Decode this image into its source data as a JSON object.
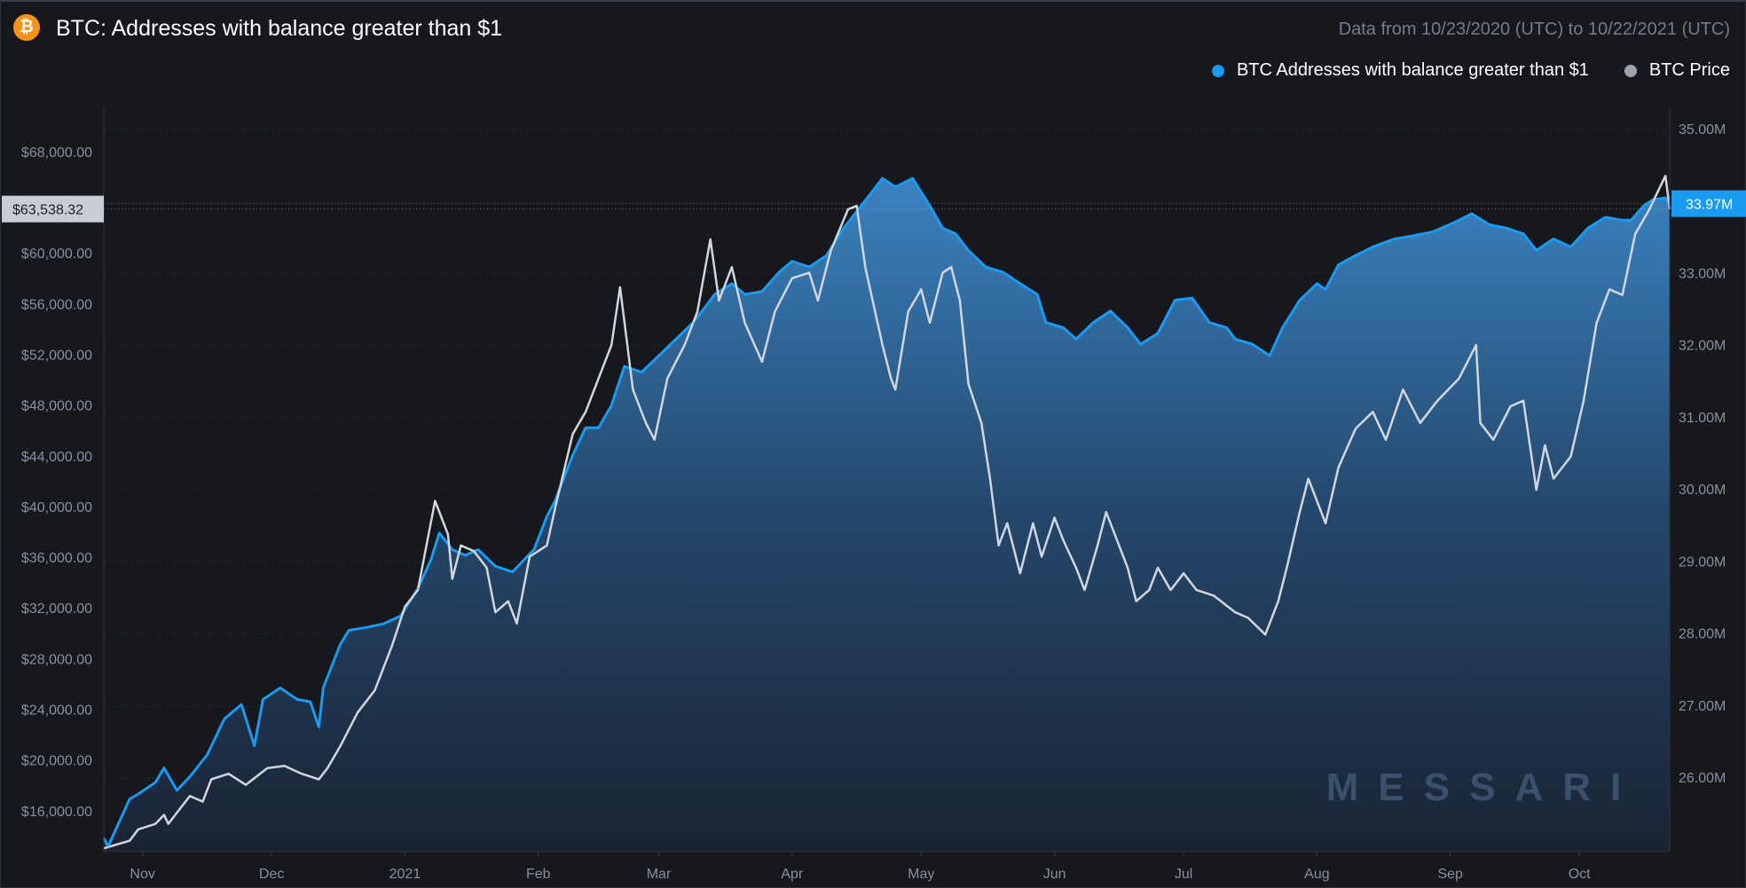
{
  "header": {
    "title": "BTC: Addresses with balance greater than $1",
    "range": "Data from 10/23/2020 (UTC) to 10/22/2021 (UTC)",
    "logo_glyph": "₿"
  },
  "watermark": "MESSARI",
  "chart_data": {
    "type": "line",
    "title": "BTC: Addresses with balance greater than $1",
    "x_unit": "days since 2020-10-23",
    "x_range": [
      0,
      364
    ],
    "x_ticks": [
      {
        "label": "Nov",
        "day": 9
      },
      {
        "label": "Dec",
        "day": 39
      },
      {
        "label": "2021",
        "day": 70
      },
      {
        "label": "Feb",
        "day": 101
      },
      {
        "label": "Mar",
        "day": 129
      },
      {
        "label": "Apr",
        "day": 160
      },
      {
        "label": "May",
        "day": 190
      },
      {
        "label": "Jun",
        "day": 221
      },
      {
        "label": "Jul",
        "day": 251
      },
      {
        "label": "Aug",
        "day": 282
      },
      {
        "label": "Sep",
        "day": 313
      },
      {
        "label": "Oct",
        "day": 343
      }
    ],
    "left_axis": {
      "label": "BTC Price",
      "ylim": [
        12840,
        71700
      ],
      "ticks": [
        {
          "v": 68000,
          "label": "$68,000.00"
        },
        {
          "v": 60000,
          "label": "$60,000.00"
        },
        {
          "v": 56000,
          "label": "$56,000.00"
        },
        {
          "v": 52000,
          "label": "$52,000.00"
        },
        {
          "v": 48000,
          "label": "$48,000.00"
        },
        {
          "v": 44000,
          "label": "$44,000.00"
        },
        {
          "v": 40000,
          "label": "$40,000.00"
        },
        {
          "v": 36000,
          "label": "$36,000.00"
        },
        {
          "v": 32000,
          "label": "$32,000.00"
        },
        {
          "v": 28000,
          "label": "$28,000.00"
        },
        {
          "v": 24000,
          "label": "$24,000.00"
        },
        {
          "v": 20000,
          "label": "$20,000.00"
        },
        {
          "v": 16000,
          "label": "$16,000.00"
        }
      ],
      "current": {
        "v": 63538.32,
        "label": "$63,538.32"
      }
    },
    "right_axis": {
      "label": "Addresses",
      "ylim": [
        24.98,
        35.33
      ],
      "ticks": [
        {
          "v": 35,
          "label": "35.00M"
        },
        {
          "v": 33,
          "label": "33.00M"
        },
        {
          "v": 32,
          "label": "32.00M"
        },
        {
          "v": 31,
          "label": "31.00M"
        },
        {
          "v": 30,
          "label": "30.00M"
        },
        {
          "v": 29,
          "label": "29.00M"
        },
        {
          "v": 28,
          "label": "28.00M"
        },
        {
          "v": 27,
          "label": "27.00M"
        },
        {
          "v": 26,
          "label": "26.00M"
        }
      ],
      "current": {
        "v": 33.97,
        "label": "33.97M"
      }
    },
    "legend": {
      "placement": "top-right"
    },
    "series": [
      {
        "name": "BTC Addresses with balance greater than $1",
        "color": "#1a9af0",
        "axis": "right",
        "unit": "M",
        "points": [
          [
            0,
            25.17
          ],
          [
            1,
            25.05
          ],
          [
            6,
            25.71
          ],
          [
            8,
            25.78
          ],
          [
            12,
            25.94
          ],
          [
            14,
            26.14
          ],
          [
            17,
            25.83
          ],
          [
            20,
            26.02
          ],
          [
            24,
            26.32
          ],
          [
            28,
            26.82
          ],
          [
            32,
            27.02
          ],
          [
            35,
            26.45
          ],
          [
            37,
            27.09
          ],
          [
            41,
            27.25
          ],
          [
            45,
            27.09
          ],
          [
            48,
            27.06
          ],
          [
            50,
            26.71
          ],
          [
            51,
            27.25
          ],
          [
            55,
            27.86
          ],
          [
            57,
            28.05
          ],
          [
            61,
            28.09
          ],
          [
            65,
            28.14
          ],
          [
            69,
            28.25
          ],
          [
            73,
            28.63
          ],
          [
            76,
            29.02
          ],
          [
            78,
            29.4
          ],
          [
            81,
            29.17
          ],
          [
            84,
            29.09
          ],
          [
            87,
            29.17
          ],
          [
            91,
            28.94
          ],
          [
            95,
            28.86
          ],
          [
            100,
            29.17
          ],
          [
            103,
            29.63
          ],
          [
            105,
            29.86
          ],
          [
            109,
            30.48
          ],
          [
            112,
            30.86
          ],
          [
            115,
            30.86
          ],
          [
            118,
            31.17
          ],
          [
            121,
            31.71
          ],
          [
            125,
            31.63
          ],
          [
            129,
            31.86
          ],
          [
            133,
            32.09
          ],
          [
            137,
            32.32
          ],
          [
            140,
            32.55
          ],
          [
            142,
            32.71
          ],
          [
            146,
            32.86
          ],
          [
            149,
            32.71
          ],
          [
            153,
            32.75
          ],
          [
            157,
            33.02
          ],
          [
            160,
            33.17
          ],
          [
            164,
            33.09
          ],
          [
            168,
            33.25
          ],
          [
            172,
            33.63
          ],
          [
            175,
            33.86
          ],
          [
            181,
            34.32
          ],
          [
            184,
            34.2
          ],
          [
            188,
            34.32
          ],
          [
            192,
            33.94
          ],
          [
            195,
            33.63
          ],
          [
            198,
            33.55
          ],
          [
            201,
            33.32
          ],
          [
            205,
            33.09
          ],
          [
            209,
            33.02
          ],
          [
            213,
            32.86
          ],
          [
            217,
            32.71
          ],
          [
            219,
            32.32
          ],
          [
            223,
            32.25
          ],
          [
            226,
            32.09
          ],
          [
            230,
            32.32
          ],
          [
            234,
            32.48
          ],
          [
            238,
            32.25
          ],
          [
            241,
            32.02
          ],
          [
            245,
            32.17
          ],
          [
            249,
            32.63
          ],
          [
            253,
            32.66
          ],
          [
            257,
            32.32
          ],
          [
            261,
            32.25
          ],
          [
            263,
            32.09
          ],
          [
            267,
            32.02
          ],
          [
            271,
            31.86
          ],
          [
            274,
            32.25
          ],
          [
            278,
            32.63
          ],
          [
            282,
            32.86
          ],
          [
            284,
            32.78
          ],
          [
            287,
            33.12
          ],
          [
            291,
            33.25
          ],
          [
            295,
            33.37
          ],
          [
            300,
            33.48
          ],
          [
            304,
            33.52
          ],
          [
            309,
            33.58
          ],
          [
            314,
            33.71
          ],
          [
            318,
            33.83
          ],
          [
            322,
            33.68
          ],
          [
            326,
            33.63
          ],
          [
            330,
            33.55
          ],
          [
            333,
            33.32
          ],
          [
            337,
            33.48
          ],
          [
            341,
            33.37
          ],
          [
            345,
            33.63
          ],
          [
            349,
            33.78
          ],
          [
            353,
            33.74
          ],
          [
            355,
            33.74
          ],
          [
            358,
            33.94
          ],
          [
            360,
            34.02
          ],
          [
            363,
            34.05
          ],
          [
            364,
            33.97
          ]
        ]
      },
      {
        "name": "BTC Price",
        "color": "#d3d6de",
        "axis": "left",
        "unit": "USD",
        "points": [
          [
            0,
            13100
          ],
          [
            6,
            13700
          ],
          [
            8,
            14594
          ],
          [
            12,
            15033
          ],
          [
            14,
            15736
          ],
          [
            15,
            15033
          ],
          [
            17,
            15910
          ],
          [
            20,
            17228
          ],
          [
            23,
            16789
          ],
          [
            25,
            18546
          ],
          [
            29,
            18985
          ],
          [
            33,
            18107
          ],
          [
            38,
            19425
          ],
          [
            42,
            19600
          ],
          [
            46,
            18985
          ],
          [
            50,
            18546
          ],
          [
            52,
            19425
          ],
          [
            55,
            21182
          ],
          [
            59,
            23817
          ],
          [
            63,
            25574
          ],
          [
            67,
            29088
          ],
          [
            70,
            32163
          ],
          [
            73,
            33480
          ],
          [
            76,
            38750
          ],
          [
            77,
            40507
          ],
          [
            80,
            37872
          ],
          [
            81,
            34358
          ],
          [
            83,
            36993
          ],
          [
            86,
            36554
          ],
          [
            89,
            35236
          ],
          [
            91,
            31723
          ],
          [
            94,
            32601
          ],
          [
            96,
            30844
          ],
          [
            99,
            36114
          ],
          [
            103,
            36993
          ],
          [
            105,
            40067
          ],
          [
            109,
            45777
          ],
          [
            112,
            47534
          ],
          [
            116,
            51047
          ],
          [
            118,
            52803
          ],
          [
            120,
            57371
          ],
          [
            123,
            49290
          ],
          [
            126,
            46655
          ],
          [
            128,
            45337
          ],
          [
            131,
            50168
          ],
          [
            135,
            52803
          ],
          [
            138,
            55439
          ],
          [
            141,
            61148
          ],
          [
            143,
            56317
          ],
          [
            146,
            58952
          ],
          [
            149,
            54561
          ],
          [
            153,
            51486
          ],
          [
            156,
            55439
          ],
          [
            160,
            58074
          ],
          [
            164,
            58513
          ],
          [
            166,
            56317
          ],
          [
            169,
            60270
          ],
          [
            173,
            63520
          ],
          [
            175,
            63784
          ],
          [
            177,
            58952
          ],
          [
            181,
            52803
          ],
          [
            183,
            50168
          ],
          [
            184,
            49290
          ],
          [
            187,
            55439
          ],
          [
            190,
            57196
          ],
          [
            192,
            54561
          ],
          [
            195,
            58513
          ],
          [
            197,
            58952
          ],
          [
            199,
            56317
          ],
          [
            201,
            49729
          ],
          [
            204,
            46655
          ],
          [
            206,
            42263
          ],
          [
            208,
            36993
          ],
          [
            210,
            38750
          ],
          [
            213,
            34797
          ],
          [
            216,
            38750
          ],
          [
            218,
            36114
          ],
          [
            221,
            39189
          ],
          [
            223,
            37432
          ],
          [
            226,
            35236
          ],
          [
            228,
            33480
          ],
          [
            231,
            36993
          ],
          [
            233,
            39628
          ],
          [
            235,
            37872
          ],
          [
            238,
            35236
          ],
          [
            240,
            32601
          ],
          [
            243,
            33480
          ],
          [
            245,
            35236
          ],
          [
            248,
            33480
          ],
          [
            251,
            34797
          ],
          [
            254,
            33480
          ],
          [
            258,
            33040
          ],
          [
            263,
            31723
          ],
          [
            266,
            31284
          ],
          [
            270,
            29966
          ],
          [
            273,
            32601
          ],
          [
            275,
            35236
          ],
          [
            278,
            39628
          ],
          [
            280,
            42263
          ],
          [
            284,
            38750
          ],
          [
            287,
            43142
          ],
          [
            291,
            46216
          ],
          [
            295,
            47534
          ],
          [
            298,
            45337
          ],
          [
            302,
            49290
          ],
          [
            306,
            46655
          ],
          [
            310,
            48412
          ],
          [
            315,
            50168
          ],
          [
            319,
            52803
          ],
          [
            320,
            46655
          ],
          [
            323,
            45337
          ],
          [
            327,
            47972
          ],
          [
            330,
            48412
          ],
          [
            333,
            41385
          ],
          [
            335,
            44899
          ],
          [
            337,
            42263
          ],
          [
            341,
            44020
          ],
          [
            344,
            48412
          ],
          [
            347,
            54561
          ],
          [
            350,
            57196
          ],
          [
            353,
            56757
          ],
          [
            356,
            61588
          ],
          [
            359,
            63345
          ],
          [
            363,
            66156
          ],
          [
            364,
            63538
          ]
        ]
      }
    ]
  }
}
